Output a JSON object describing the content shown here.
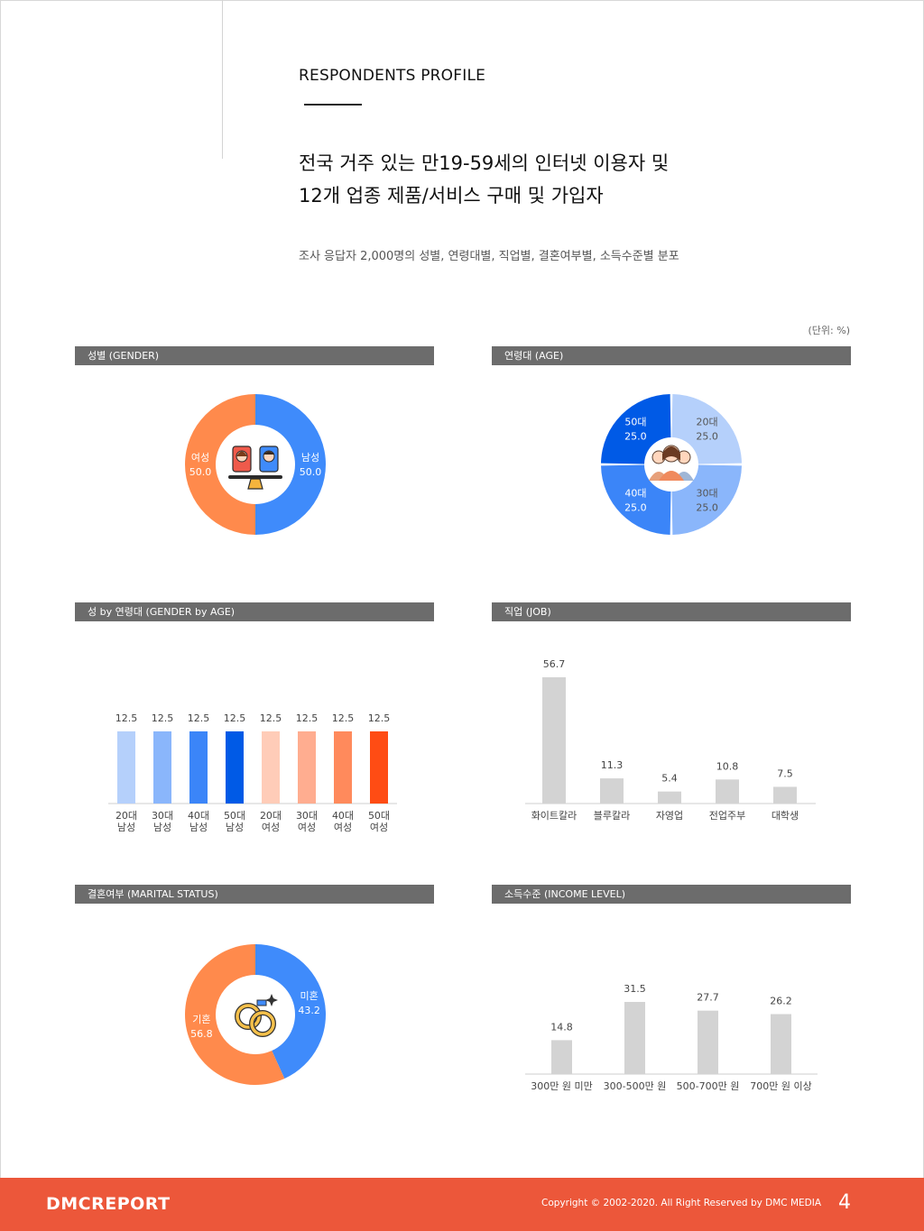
{
  "header": {
    "kicker": "RESPONDENTS PROFILE",
    "headline_line1": "전국 거주 있는 만19-59세의 인터넷 이용자 및",
    "headline_line2": "12개 업종 제품/서비스 구매 및 가입자",
    "subtitle": "조사 응답자 2,000명의 성별, 연령대별, 직업별, 결혼여부별, 소득수준별 분포",
    "unit": "(단위: %)"
  },
  "colors": {
    "panel_bar": "#6c6c6c",
    "footer": "#ec573a",
    "gray_bar": "#d3d3d3",
    "blue": "#3f8bfb",
    "orange": "#ff8a4c"
  },
  "chart_data": [
    {
      "type": "pie",
      "title": "성별 (GENDER)",
      "icon": "balance-scale-people-icon",
      "categories": [
        "남성",
        "여성"
      ],
      "values": [
        50.0,
        50.0
      ],
      "colors": [
        "#3f8bfb",
        "#ff8a4c"
      ]
    },
    {
      "type": "pie",
      "title": "연령대 (AGE)",
      "icon": "group-people-icon",
      "categories": [
        "20대",
        "30대",
        "40대",
        "50대"
      ],
      "values": [
        25.0,
        25.0,
        25.0,
        25.0
      ],
      "colors": [
        "#b5d0fb",
        "#8ab6fb",
        "#3b85f8",
        "#005ae6"
      ]
    },
    {
      "type": "bar",
      "title": "성 by 연령대 (GENDER by AGE)",
      "categories": [
        "20대 남성",
        "30대 남성",
        "40대 남성",
        "50대 남성",
        "20대 여성",
        "30대 여성",
        "40대 여성",
        "50대 여성"
      ],
      "category_lines": [
        [
          "20대",
          "남성"
        ],
        [
          "30대",
          "남성"
        ],
        [
          "40대",
          "남성"
        ],
        [
          "50대",
          "남성"
        ],
        [
          "20대",
          "여성"
        ],
        [
          "30대",
          "여성"
        ],
        [
          "40대",
          "여성"
        ],
        [
          "50대",
          "여성"
        ]
      ],
      "values": [
        12.5,
        12.5,
        12.5,
        12.5,
        12.5,
        12.5,
        12.5,
        12.5
      ],
      "colors": [
        "#b5d0fb",
        "#8ab6fb",
        "#3b85f8",
        "#005ae6",
        "#ffccb8",
        "#ffad90",
        "#ff8a5c",
        "#ff4c14"
      ],
      "ylim": [
        0,
        12.5
      ]
    },
    {
      "type": "bar",
      "title": "직업 (JOB)",
      "categories": [
        "화이트칼라",
        "블루칼라",
        "자영업",
        "전업주부",
        "대학생"
      ],
      "values": [
        56.7,
        11.3,
        5.4,
        10.8,
        7.5
      ],
      "colors": [
        "#d3d3d3"
      ],
      "ylim": [
        0,
        56.7
      ]
    },
    {
      "type": "pie",
      "title": "결혼여부 (MARITAL STATUS)",
      "icon": "wedding-rings-icon",
      "categories": [
        "미혼",
        "기혼"
      ],
      "values": [
        43.2,
        56.8
      ],
      "colors": [
        "#3f8bfb",
        "#ff8a4c"
      ]
    },
    {
      "type": "bar",
      "title": "소득수준 (INCOME LEVEL)",
      "categories": [
        "300만 원 미만",
        "300-500만 원",
        "500-700만 원",
        "700만 원 이상"
      ],
      "values": [
        14.8,
        31.5,
        27.7,
        26.2
      ],
      "colors": [
        "#d3d3d3"
      ],
      "ylim": [
        0,
        31.5
      ]
    }
  ],
  "footer": {
    "brand": "DMCREPORT",
    "copyright": "Copyright © 2002-2020. All Right Reserved by DMC MEDIA",
    "page": "4"
  }
}
